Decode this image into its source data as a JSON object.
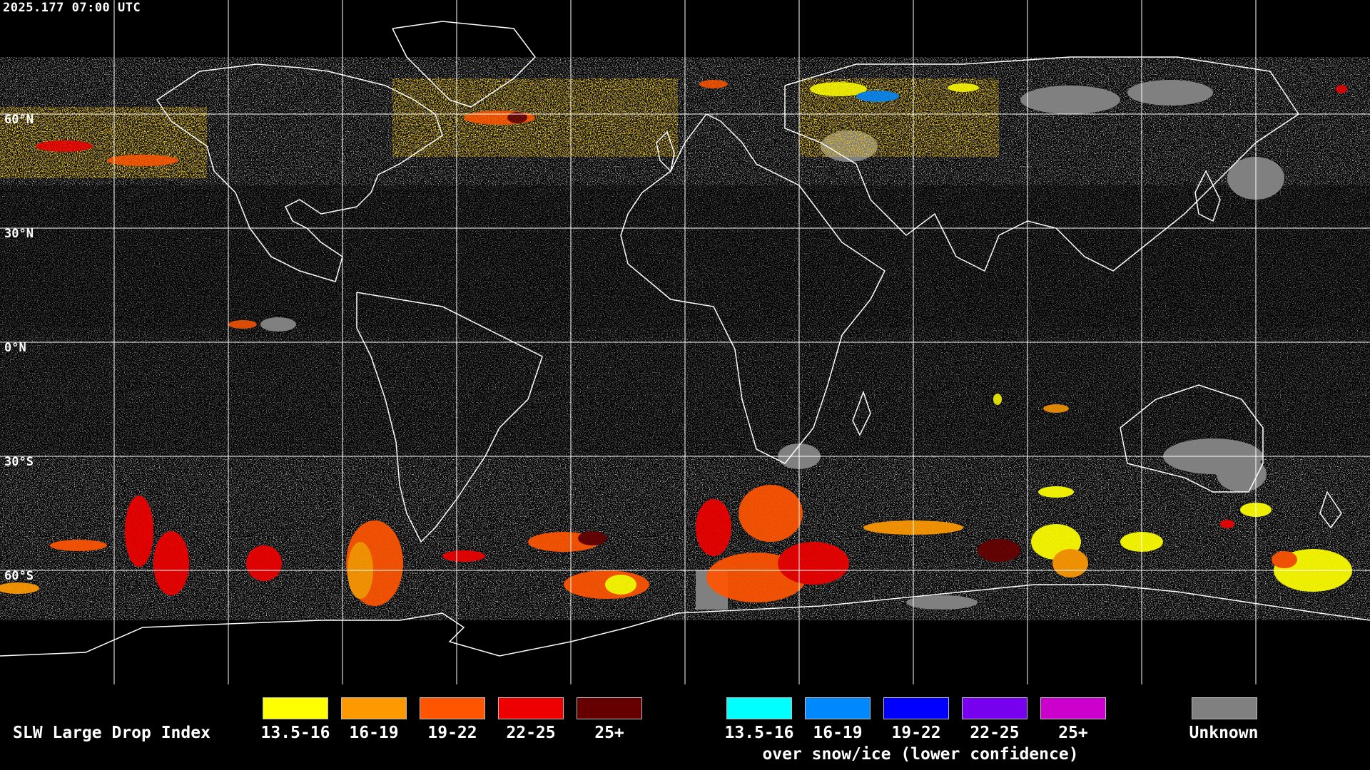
{
  "timestamp": "2025.177 07:00 UTC",
  "latitude_labels": [
    {
      "text": "60°N",
      "lat": 60
    },
    {
      "text": "30°N",
      "lat": 30
    },
    {
      "text": "0°N",
      "lat": 0
    },
    {
      "text": "30°S",
      "lat": -30
    },
    {
      "text": "60°S",
      "lat": -60
    }
  ],
  "legend": {
    "title": "SLW Large Drop Index",
    "standard_bins": [
      {
        "label": "13.5-16",
        "color": "#ffff00"
      },
      {
        "label": "16-19",
        "color": "#ff9900"
      },
      {
        "label": "19-22",
        "color": "#ff5500"
      },
      {
        "label": "22-25",
        "color": "#ee0000"
      },
      {
        "label": "25+",
        "color": "#660000"
      }
    ],
    "snow_ice_bins": [
      {
        "label": "13.5-16",
        "color": "#00ffff"
      },
      {
        "label": "16-19",
        "color": "#0088ff"
      },
      {
        "label": "19-22",
        "color": "#0000ff"
      },
      {
        "label": "22-25",
        "color": "#7700ee"
      },
      {
        "label": "25+",
        "color": "#cc00cc"
      }
    ],
    "snow_ice_caption": "over snow/ice (lower confidence)",
    "unknown": {
      "label": "Unknown",
      "color": "#808080"
    }
  },
  "map": {
    "projection": "equirectangular",
    "grid_color": "#ffffff",
    "coastline_color": "#ffffff",
    "background_color": "#000000"
  }
}
